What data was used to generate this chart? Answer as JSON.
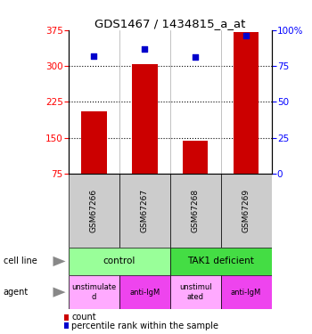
{
  "title": "GDS1467 / 1434815_a_at",
  "samples": [
    "GSM67266",
    "GSM67267",
    "GSM67268",
    "GSM67269"
  ],
  "bar_values": [
    205,
    303,
    143,
    370
  ],
  "scatter_values": [
    82,
    87,
    81,
    96
  ],
  "ylim_left": [
    75,
    375
  ],
  "ylim_right": [
    0,
    100
  ],
  "yticks_left": [
    75,
    150,
    225,
    300,
    375
  ],
  "yticks_right": [
    0,
    25,
    50,
    75,
    100
  ],
  "bar_color": "#cc0000",
  "scatter_color": "#0000cc",
  "bar_bottom": 75,
  "cell_line_colors": [
    "#99ff99",
    "#44dd44"
  ],
  "agent_colors_light": "#ffaaff",
  "agent_colors_dark": "#ee44ee",
  "sample_box_color": "#cccccc",
  "legend_count_color": "#cc0000",
  "legend_pct_color": "#0000cc"
}
